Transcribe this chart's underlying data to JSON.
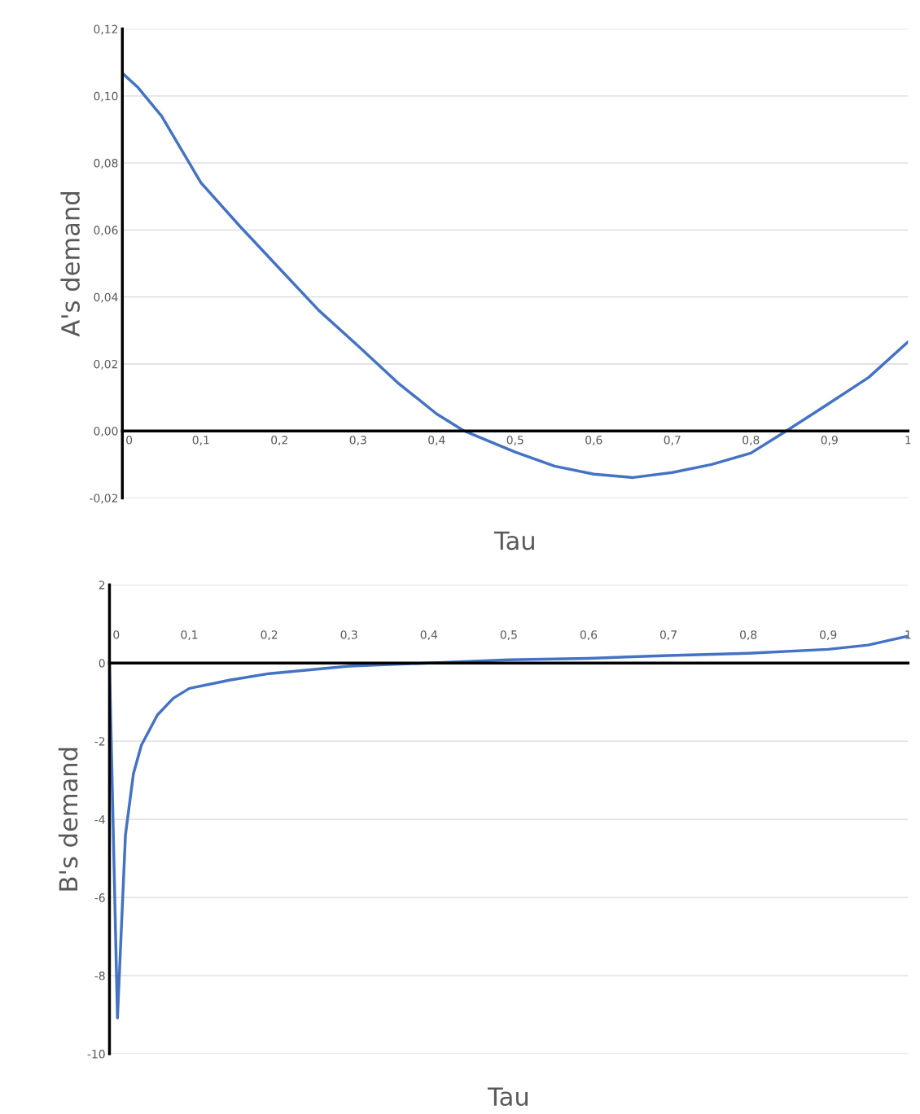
{
  "chart_data": [
    {
      "type": "line",
      "xlabel": "Tau",
      "ylabel": "A's demand",
      "grid": "y",
      "xlim": [
        0,
        1
      ],
      "ylim": [
        -0.02,
        0.12
      ],
      "xticks": [
        0,
        {
          "value": 0.1,
          "label": "0,1"
        },
        {
          "value": 0.2,
          "label": "0,2"
        },
        {
          "value": 0.3,
          "label": "0,3"
        },
        {
          "value": 0.4,
          "label": "0,4"
        },
        {
          "value": 0.5,
          "label": "0,5"
        },
        {
          "value": 0.6,
          "label": "0,6"
        },
        {
          "value": 0.7,
          "label": "0,7"
        },
        {
          "value": 0.8,
          "label": "0,8"
        },
        {
          "value": 0.9,
          "label": "0,9"
        },
        1
      ],
      "yticks": [
        {
          "value": -0.02,
          "label": "-0,02"
        },
        {
          "value": 0,
          "label": "0,00"
        },
        {
          "value": 0.02,
          "label": "0,02"
        },
        {
          "value": 0.04,
          "label": "0,04"
        },
        {
          "value": 0.06,
          "label": "0,06"
        },
        {
          "value": 0.08,
          "label": "0,08"
        },
        {
          "value": 0.1,
          "label": "0,10"
        },
        {
          "value": 0.12,
          "label": "0,12"
        }
      ],
      "x": [
        0,
        0.02,
        0.05,
        0.1,
        0.15,
        0.2,
        0.25,
        0.3,
        0.35,
        0.4,
        0.435,
        0.5,
        0.55,
        0.6,
        0.65,
        0.7,
        0.75,
        0.8,
        0.845,
        0.9,
        0.95,
        1
      ],
      "series": [
        {
          "color": "#4472c4",
          "values": [
            0.1068,
            0.1025,
            0.094,
            0.0741,
            0.061,
            0.0485,
            0.036,
            0.0254,
            0.0145,
            0.0051,
            0,
            -0.0063,
            -0.0105,
            -0.0129,
            -0.0139,
            -0.0124,
            -0.01,
            -0.0066,
            0,
            0.0083,
            0.016,
            0.0266
          ]
        }
      ]
    },
    {
      "type": "line",
      "xlabel": "Tau",
      "ylabel": "B's demand",
      "grid": "y",
      "xlim": [
        0,
        1
      ],
      "ylim": [
        -10,
        2
      ],
      "xticks": [
        0,
        {
          "value": 0.1,
          "label": "0,1"
        },
        {
          "value": 0.2,
          "label": "0,2"
        },
        {
          "value": 0.3,
          "label": "0,3"
        },
        {
          "value": 0.4,
          "label": "0,4"
        },
        {
          "value": 0.5,
          "label": "0,5"
        },
        {
          "value": 0.6,
          "label": "0,6"
        },
        {
          "value": 0.7,
          "label": "0,7"
        },
        {
          "value": 0.8,
          "label": "0,8"
        },
        {
          "value": 0.9,
          "label": "0,9"
        },
        1
      ],
      "yticks": [
        -10,
        -8,
        -6,
        -4,
        -2,
        0,
        2
      ],
      "x": [
        0,
        0.01,
        0.02,
        0.03,
        0.04,
        0.06,
        0.08,
        0.1,
        0.15,
        0.2,
        0.3,
        0.4,
        0.5,
        0.6,
        0.7,
        0.8,
        0.9,
        0.95,
        1
      ],
      "series": [
        {
          "color": "#4472c4",
          "values": [
            0,
            -9.08,
            -4.4,
            -2.83,
            -2.1,
            -1.33,
            -0.9,
            -0.65,
            -0.44,
            -0.27,
            -0.08,
            0,
            0.08,
            0.12,
            0.19,
            0.25,
            0.35,
            0.46,
            0.69
          ]
        }
      ]
    }
  ]
}
